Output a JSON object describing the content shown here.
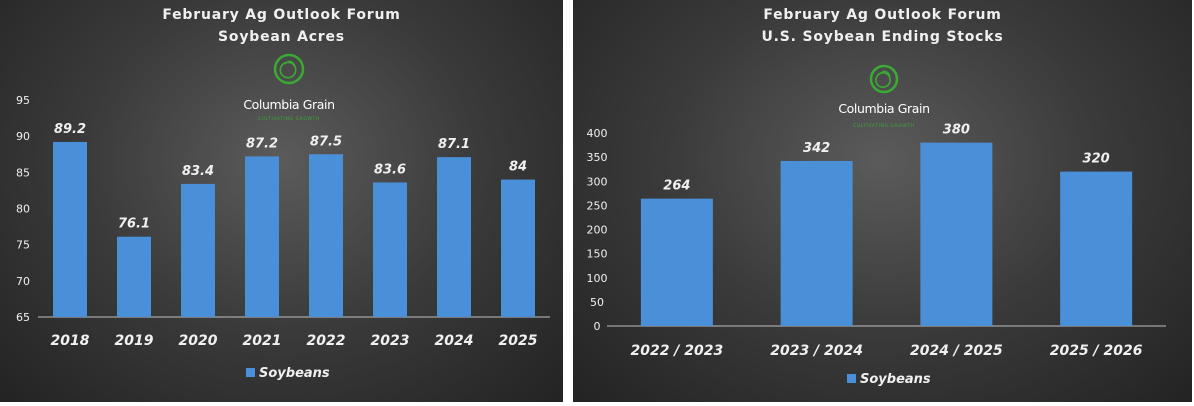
{
  "logo": {
    "name": "Columbia Grain",
    "tagline": "CULTIVATING GROWTH",
    "icon": "columbia-grain-logo-icon",
    "color": "#3aaa35"
  },
  "colors": {
    "bar": "#4a90d9",
    "text": "#f0f0f0",
    "axis": "#bfbfbf"
  },
  "chart_data": [
    {
      "type": "bar",
      "title": "February Ag Outlook Forum",
      "subtitle": "Soybean Acres",
      "categories": [
        "2018",
        "2019",
        "2020",
        "2021",
        "2022",
        "2023",
        "2024",
        "2025"
      ],
      "series": [
        {
          "name": "Soybeans",
          "values": [
            89.2,
            76.1,
            83.4,
            87.2,
            87.5,
            83.6,
            87.1,
            84
          ]
        }
      ],
      "data_labels": [
        "89.2",
        "76.1",
        "83.4",
        "87.2",
        "87.5",
        "83.6",
        "87.1",
        "84"
      ],
      "ylim": [
        65,
        95
      ],
      "yticks": [
        65,
        70,
        75,
        80,
        85,
        90,
        95
      ],
      "legend": "bottom",
      "grid": false
    },
    {
      "type": "bar",
      "title": "February Ag Outlook Forum",
      "subtitle": "U.S. Soybean Ending Stocks",
      "categories": [
        "2022 / 2023",
        "2023 / 2024",
        "2024 / 2025",
        "2025 / 2026"
      ],
      "series": [
        {
          "name": "Soybeans",
          "values": [
            264,
            342,
            380,
            320
          ]
        }
      ],
      "data_labels": [
        "264",
        "342",
        "380",
        "320"
      ],
      "ylim": [
        0,
        400
      ],
      "yticks": [
        0,
        50,
        100,
        150,
        200,
        250,
        300,
        350,
        400
      ],
      "legend": "bottom",
      "grid": false
    }
  ]
}
